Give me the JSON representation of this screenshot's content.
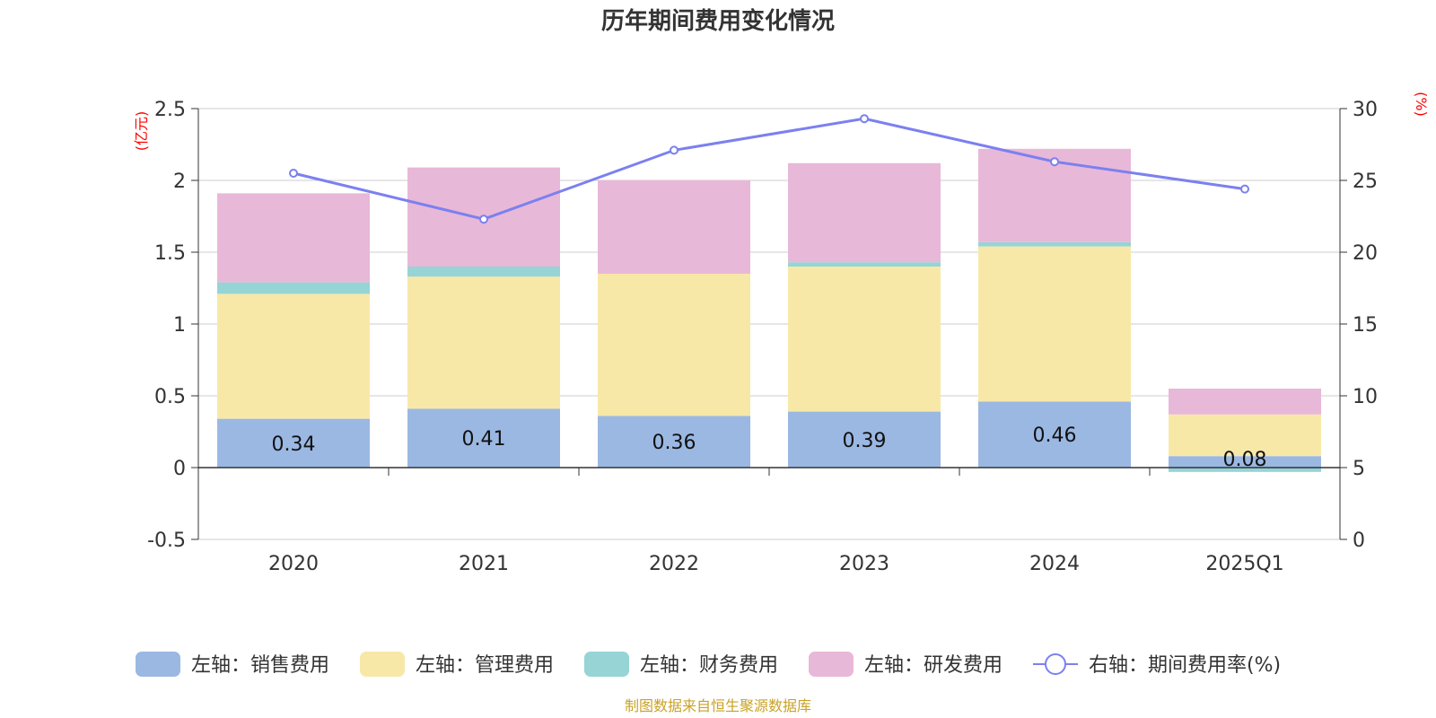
{
  "chart_data": {
    "type": "bar",
    "title": "历年期间费用变化情况",
    "categories": [
      "2020",
      "2021",
      "2022",
      "2023",
      "2024",
      "2025Q1"
    ],
    "left_axis": {
      "unit": "(亿元)",
      "ylim": [
        -0.5,
        2.5
      ],
      "ticks": [
        "2.5",
        "2",
        "1.5",
        "1",
        "0.5",
        "0",
        "-0.5"
      ],
      "tick_values": [
        2.5,
        2,
        1.5,
        1,
        0.5,
        0,
        -0.5
      ]
    },
    "right_axis": {
      "unit": "(%)",
      "ylim": [
        0,
        30
      ],
      "ticks": [
        "30",
        "25",
        "20",
        "15",
        "10",
        "5",
        "0"
      ],
      "tick_values": [
        30,
        25,
        20,
        15,
        10,
        5,
        0
      ]
    },
    "stacked": true,
    "grid": true,
    "legend_position": "bottom",
    "series": [
      {
        "name": "左轴：销售费用",
        "axis": "left",
        "color": "#9bb8e3",
        "values": [
          0.34,
          0.41,
          0.36,
          0.39,
          0.46,
          0.08
        ],
        "labels": [
          "0.34",
          "0.41",
          "0.36",
          "0.39",
          "0.46",
          "0.08"
        ]
      },
      {
        "name": "左轴：管理费用",
        "axis": "left",
        "color": "#f8e8a8",
        "values": [
          0.87,
          0.92,
          0.99,
          1.01,
          1.08,
          0.29
        ]
      },
      {
        "name": "左轴：财务费用",
        "axis": "left",
        "color": "#96d4d6",
        "values": [
          0.08,
          0.07,
          0.0,
          0.03,
          0.03,
          -0.03
        ]
      },
      {
        "name": "左轴：研发费用",
        "axis": "left",
        "color": "#e8b8d8",
        "values": [
          0.62,
          0.69,
          0.65,
          0.69,
          0.65,
          0.18
        ]
      },
      {
        "name": "右轴：期间费用率(%)",
        "axis": "right",
        "type": "line",
        "color": "#7b80f0",
        "values": [
          25.5,
          22.3,
          27.1,
          29.3,
          26.3,
          24.4
        ]
      }
    ]
  },
  "source_note": "制图数据来自恒生聚源数据库"
}
